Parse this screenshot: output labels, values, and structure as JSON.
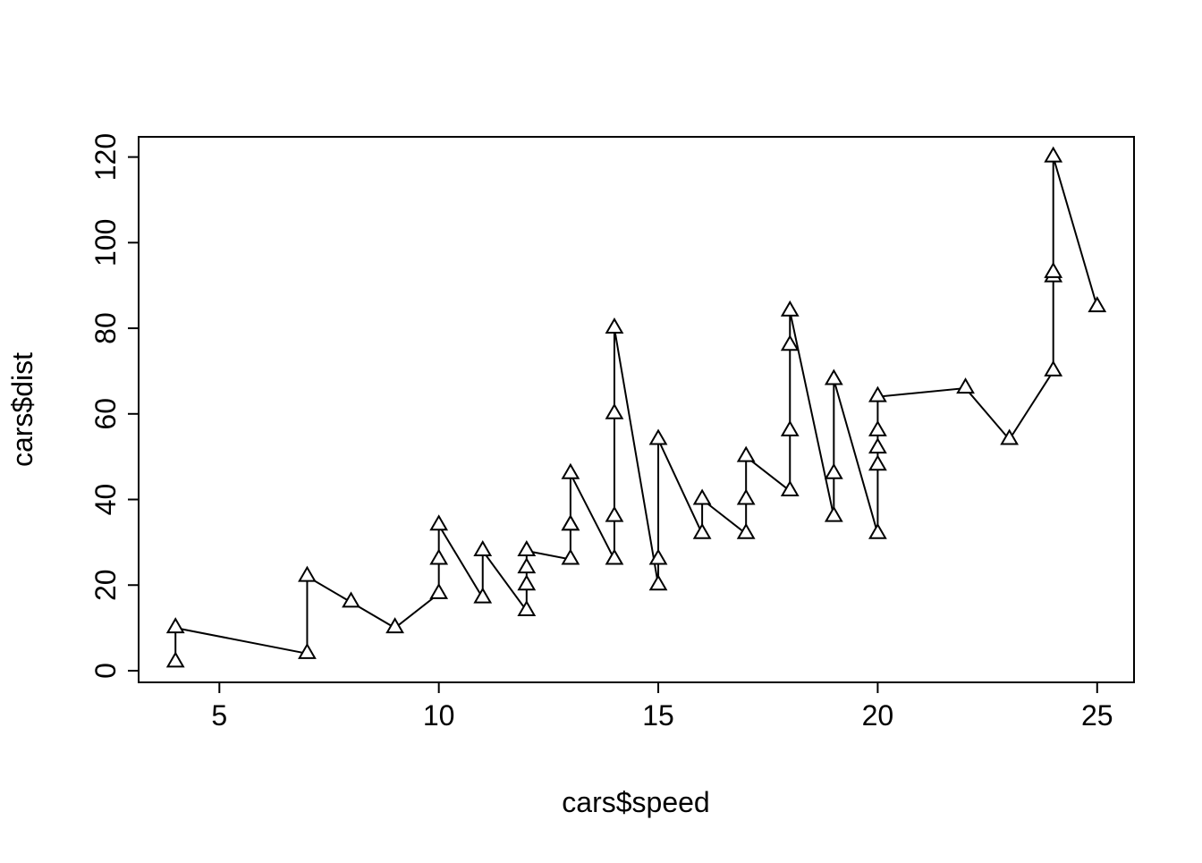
{
  "chart_data": {
    "type": "line",
    "title": "",
    "xlabel": "cars$speed",
    "ylabel": "cars$dist",
    "marker": "triangle-up-open",
    "line_color": "#000000",
    "background": "#ffffff",
    "x": [
      4,
      4,
      7,
      7,
      8,
      9,
      10,
      10,
      10,
      11,
      11,
      12,
      12,
      12,
      12,
      13,
      13,
      13,
      13,
      14,
      14,
      14,
      14,
      15,
      15,
      15,
      16,
      16,
      17,
      17,
      17,
      18,
      18,
      18,
      18,
      19,
      19,
      19,
      20,
      20,
      20,
      20,
      20,
      22,
      23,
      24,
      24,
      24,
      24,
      25
    ],
    "y": [
      2,
      10,
      4,
      22,
      16,
      10,
      18,
      26,
      34,
      17,
      28,
      14,
      20,
      24,
      28,
      26,
      34,
      34,
      46,
      26,
      36,
      60,
      80,
      20,
      26,
      54,
      32,
      40,
      32,
      40,
      50,
      42,
      56,
      76,
      84,
      36,
      46,
      68,
      32,
      48,
      52,
      56,
      64,
      66,
      54,
      70,
      92,
      93,
      120,
      85
    ],
    "x_ticks": [
      5,
      10,
      15,
      20,
      25
    ],
    "y_ticks": [
      0,
      20,
      40,
      60,
      80,
      100,
      120
    ],
    "xlim": [
      3.16,
      25.84
    ],
    "ylim": [
      -2.72,
      124.72
    ],
    "grid": "off",
    "legend": "none"
  }
}
